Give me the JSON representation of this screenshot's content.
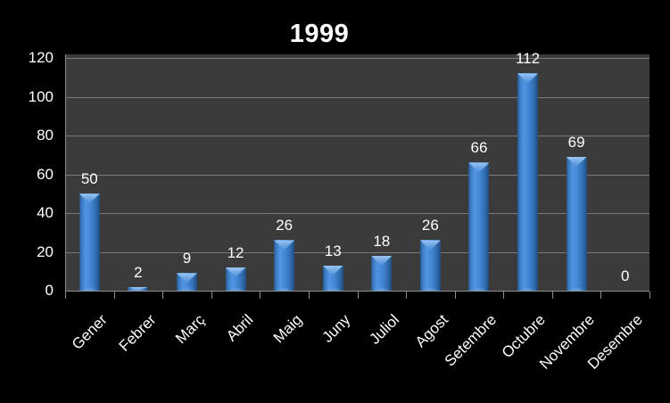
{
  "chart_data": {
    "type": "bar",
    "title": "1999",
    "xlabel": "",
    "ylabel": "",
    "categories": [
      "Gener",
      "Febrer",
      "Març",
      "Abril",
      "Maig",
      "Juny",
      "Juliol",
      "Agost",
      "Setembre",
      "Octubre",
      "Novembre",
      "Desembre"
    ],
    "values": [
      50,
      2,
      9,
      12,
      26,
      13,
      18,
      26,
      66,
      112,
      69,
      0
    ],
    "data_labels_shown": true,
    "ylim": [
      0,
      120
    ],
    "y_ticks": [
      0,
      20,
      40,
      60,
      80,
      100,
      120
    ],
    "grid": "horizontal",
    "legend": "none",
    "x_label_rotation_deg": 45
  },
  "colors": {
    "background": "#000000",
    "plot_background": "#3b3b3b",
    "gridline": "#7a7a7a",
    "axis": "#8c8c8c",
    "text": "#ffffff",
    "bar_main": "#4386d4",
    "bar_edge_dark": "#1f4c7e",
    "bar_cap_light": "#9cc6f2"
  }
}
